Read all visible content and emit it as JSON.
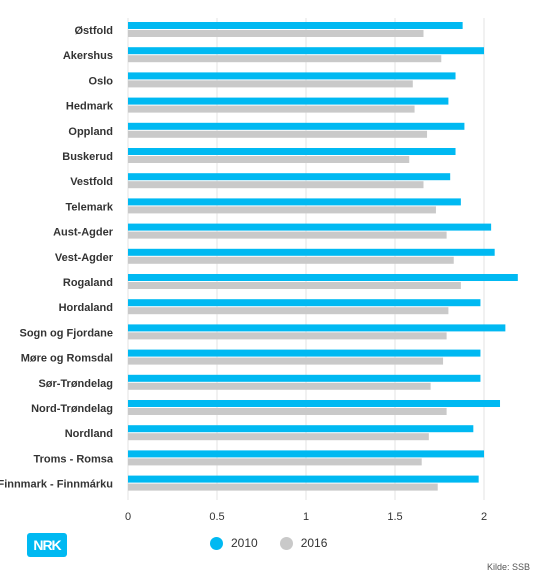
{
  "chart_data": {
    "type": "bar",
    "orientation": "horizontal",
    "categories": [
      "Østfold",
      "Akershus",
      "Oslo",
      "Hedmark",
      "Oppland",
      "Buskerud",
      "Vestfold",
      "Telemark",
      "Aust-Agder",
      "Vest-Agder",
      "Rogaland",
      "Hordaland",
      "Sogn og Fjordane",
      "Møre og Romsdal",
      "Sør-Trøndelag",
      "Nord-Trøndelag",
      "Nordland",
      "Troms - Romsa",
      "Finnmark - Finnmárku"
    ],
    "series": [
      {
        "name": "2010",
        "color": "#00b9f2",
        "values": [
          1.88,
          2.0,
          1.84,
          1.8,
          1.89,
          1.84,
          1.81,
          1.87,
          2.04,
          2.06,
          2.19,
          1.98,
          2.12,
          1.98,
          1.98,
          2.09,
          1.94,
          2.0,
          1.97
        ]
      },
      {
        "name": "2016",
        "color": "#c9c9c9",
        "values": [
          1.66,
          1.76,
          1.6,
          1.61,
          1.68,
          1.58,
          1.66,
          1.73,
          1.79,
          1.83,
          1.87,
          1.8,
          1.79,
          1.77,
          1.7,
          1.79,
          1.69,
          1.65,
          1.74
        ]
      }
    ],
    "xticks": [
      "0",
      "0.5",
      "1",
      "1.5",
      "2"
    ],
    "xlim": [
      0,
      2.2
    ],
    "title": "",
    "xlabel": "",
    "ylabel": "",
    "legend_position": "bottom",
    "grid": "vertical"
  },
  "footer": {
    "logo_text": "NRK",
    "source": "Kilde: SSB"
  }
}
